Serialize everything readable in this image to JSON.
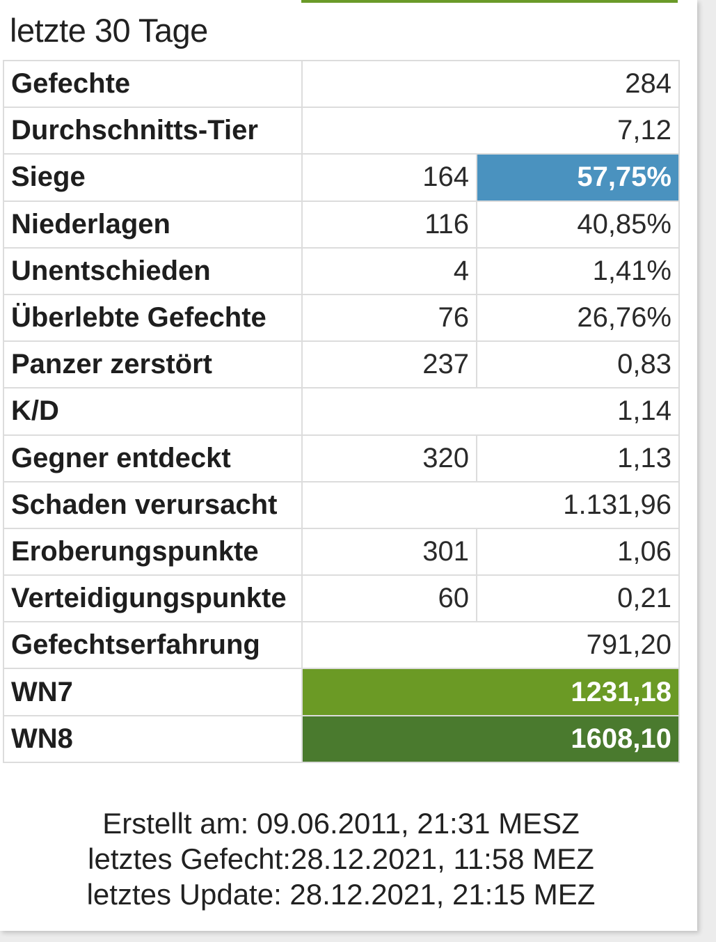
{
  "section_title": "letzte 30 Tage",
  "colors": {
    "winrate_highlight": "#4a92bf",
    "wn7_highlight": "#6b9a25",
    "wn8_highlight": "#4a7a2e"
  },
  "rows": [
    {
      "label": "Gefechte",
      "value": "284"
    },
    {
      "label": "Durchschnitts-Tier",
      "value": "7,12"
    },
    {
      "label": "Siege",
      "count": "164",
      "value": "57,75%"
    },
    {
      "label": "Niederlagen",
      "count": "116",
      "value": "40,85%"
    },
    {
      "label": "Unentschieden",
      "count": "4",
      "value": "1,41%"
    },
    {
      "label": "Überlebte Gefechte",
      "count": "76",
      "value": "26,76%"
    },
    {
      "label": "Panzer zerstört",
      "count": "237",
      "value": "0,83"
    },
    {
      "label": "K/D",
      "value": "1,14"
    },
    {
      "label": "Gegner entdeckt",
      "count": "320",
      "value": "1,13"
    },
    {
      "label": "Schaden verursacht",
      "value": "1.131,96"
    },
    {
      "label": "Eroberungspunkte",
      "count": "301",
      "value": "1,06"
    },
    {
      "label": "Verteidigungspunkte",
      "count": "60",
      "value": "0,21"
    },
    {
      "label": "Gefechtserfahrung",
      "value": "791,20"
    },
    {
      "label": "WN7",
      "value": "1231,18"
    },
    {
      "label": "WN8",
      "value": "1608,10"
    }
  ],
  "footer": {
    "created": "Erstellt am: 09.06.2011, 21:31 MESZ",
    "last_battle": "letztes Gefecht:28.12.2021, 11:58 MEZ",
    "last_update": "letztes Update: 28.12.2021, 21:15 MEZ"
  }
}
